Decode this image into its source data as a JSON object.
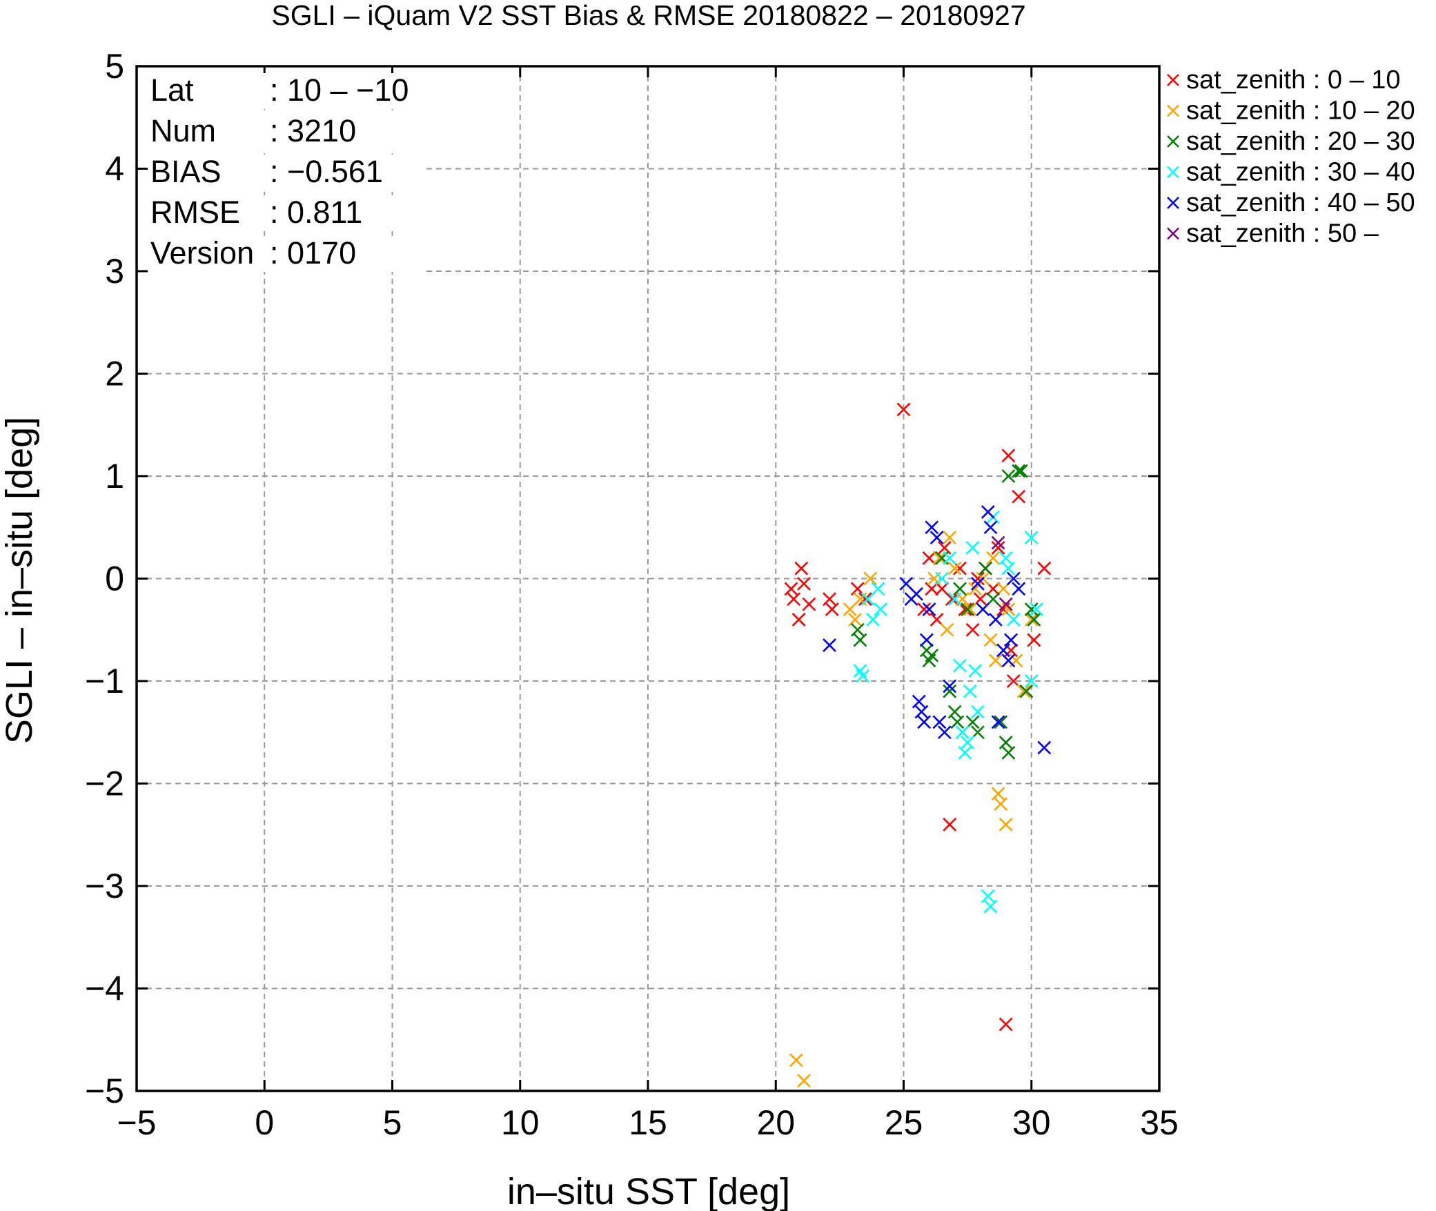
{
  "chart_data": {
    "type": "scatter",
    "title": "SGLI – iQuam V2 SST Bias & RMSE 20180822 – 20180927",
    "xlabel": "in–situ SST [deg]",
    "ylabel": "SGLI – in–situ [deg]",
    "xlim": [
      -5,
      35
    ],
    "ylim": [
      -5,
      5
    ],
    "xticks": [
      -5,
      0,
      5,
      10,
      15,
      20,
      25,
      30,
      35
    ],
    "yticks": [
      -5,
      -4,
      -3,
      -2,
      -1,
      0,
      1,
      2,
      3,
      4,
      5
    ],
    "xtick_labels": [
      "−5",
      "0",
      "5",
      "10",
      "15",
      "20",
      "25",
      "30",
      "35"
    ],
    "ytick_labels": [
      "−5",
      "−4",
      "−3",
      "−2",
      "−1",
      "0",
      "1",
      "2",
      "3",
      "4",
      "5"
    ],
    "grid": true,
    "marker": "x",
    "legend_position": "outside-top-right",
    "stats": [
      {
        "key": "Lat",
        "value": ": 10 – −10"
      },
      {
        "key": "Num",
        "value": ": 3210"
      },
      {
        "key": "BIAS",
        "value": ": −0.561"
      },
      {
        "key": "RMSE",
        "value": ": 0.811"
      },
      {
        "key": "Version",
        "value": ": 0170"
      }
    ],
    "series": [
      {
        "name": "sat_zenith :  0 – 10",
        "color": "#ff0000",
        "points": [
          [
            20.6,
            -0.1
          ],
          [
            20.7,
            -0.2
          ],
          [
            20.9,
            -0.4
          ],
          [
            21.0,
            0.1
          ],
          [
            21.1,
            -0.05
          ],
          [
            21.3,
            -0.25
          ],
          [
            22.1,
            -0.2
          ],
          [
            22.2,
            -0.3
          ],
          [
            23.2,
            -0.1
          ],
          [
            23.5,
            -0.2
          ],
          [
            25.0,
            1.65
          ],
          [
            25.8,
            -0.3
          ],
          [
            26.0,
            0.2
          ],
          [
            26.1,
            -0.1
          ],
          [
            26.3,
            -0.4
          ],
          [
            26.6,
            0.3
          ],
          [
            26.9,
            -0.2
          ],
          [
            27.2,
            0.1
          ],
          [
            27.4,
            -0.3
          ],
          [
            27.7,
            -0.5
          ],
          [
            27.9,
            0.0
          ],
          [
            28.2,
            0.1
          ],
          [
            28.5,
            -0.1
          ],
          [
            28.7,
            0.3
          ],
          [
            28.9,
            -0.3
          ],
          [
            29.1,
            1.2
          ],
          [
            29.3,
            -1.0
          ],
          [
            29.5,
            0.8
          ],
          [
            30.1,
            -0.6
          ],
          [
            30.5,
            0.1
          ],
          [
            26.8,
            -2.4
          ],
          [
            29.0,
            -4.35
          ],
          [
            29.2,
            -0.7
          ],
          [
            28.0,
            -0.2
          ],
          [
            26.5,
            -0.1
          ]
        ]
      },
      {
        "name": "sat_zenith : 10 – 20",
        "color": "#ffa500",
        "points": [
          [
            20.8,
            -4.7
          ],
          [
            21.1,
            -4.9
          ],
          [
            22.9,
            -0.3
          ],
          [
            23.1,
            -0.4
          ],
          [
            23.3,
            -0.2
          ],
          [
            23.7,
            0.0
          ],
          [
            26.2,
            0.0
          ],
          [
            26.4,
            0.2
          ],
          [
            26.7,
            -0.5
          ],
          [
            26.8,
            0.4
          ],
          [
            27.0,
            0.1
          ],
          [
            27.3,
            -0.2
          ],
          [
            27.6,
            -0.3
          ],
          [
            28.1,
            0.0
          ],
          [
            28.4,
            -0.6
          ],
          [
            28.6,
            -0.8
          ],
          [
            28.7,
            -2.1
          ],
          [
            28.8,
            -2.2
          ],
          [
            29.0,
            -2.4
          ],
          [
            28.9,
            -0.1
          ],
          [
            29.1,
            -0.3
          ],
          [
            29.4,
            -0.8
          ],
          [
            29.7,
            -1.1
          ],
          [
            30.0,
            -0.4
          ],
          [
            28.5,
            0.2
          ],
          [
            27.8,
            -0.1
          ]
        ]
      },
      {
        "name": "sat_zenith : 20 – 30",
        "color": "#008000",
        "points": [
          [
            23.2,
            -0.5
          ],
          [
            23.3,
            -0.6
          ],
          [
            25.9,
            -0.7
          ],
          [
            26.0,
            -0.8
          ],
          [
            26.1,
            -0.75
          ],
          [
            26.5,
            0.2
          ],
          [
            26.8,
            -1.1
          ],
          [
            27.0,
            -1.3
          ],
          [
            27.1,
            -1.4
          ],
          [
            27.3,
            -1.5
          ],
          [
            27.5,
            -0.3
          ],
          [
            27.7,
            -1.4
          ],
          [
            27.9,
            -1.5
          ],
          [
            28.2,
            0.1
          ],
          [
            28.5,
            -0.2
          ],
          [
            28.8,
            -1.4
          ],
          [
            29.0,
            -1.6
          ],
          [
            29.1,
            -1.7
          ],
          [
            29.1,
            1.0
          ],
          [
            29.5,
            1.05
          ],
          [
            29.6,
            1.05
          ],
          [
            29.8,
            -1.1
          ],
          [
            30.0,
            -0.3
          ],
          [
            30.1,
            -0.4
          ],
          [
            27.2,
            -0.1
          ]
        ]
      },
      {
        "name": "sat_zenith : 30 – 40",
        "color": "#00ffff",
        "points": [
          [
            23.3,
            -0.9
          ],
          [
            23.4,
            -0.95
          ],
          [
            23.6,
            -0.2
          ],
          [
            23.8,
            -0.4
          ],
          [
            24.0,
            -0.1
          ],
          [
            24.1,
            -0.3
          ],
          [
            26.5,
            0.0
          ],
          [
            26.8,
            0.2
          ],
          [
            27.0,
            -0.2
          ],
          [
            27.2,
            -0.85
          ],
          [
            27.3,
            -1.5
          ],
          [
            27.4,
            -1.7
          ],
          [
            27.5,
            -1.6
          ],
          [
            27.7,
            0.3
          ],
          [
            27.8,
            -0.9
          ],
          [
            27.9,
            -1.3
          ],
          [
            28.3,
            -3.1
          ],
          [
            28.4,
            -3.2
          ],
          [
            28.5,
            0.6
          ],
          [
            29.0,
            0.2
          ],
          [
            29.1,
            0.1
          ],
          [
            29.3,
            -0.4
          ],
          [
            30.0,
            0.4
          ],
          [
            30.0,
            -1.0
          ],
          [
            30.2,
            -0.3
          ],
          [
            27.6,
            -1.1
          ]
        ]
      },
      {
        "name": "sat_zenith : 40 – 50",
        "color": "#0000ff",
        "points": [
          [
            22.1,
            -0.65
          ],
          [
            25.1,
            -0.05
          ],
          [
            25.3,
            -0.2
          ],
          [
            25.5,
            -0.15
          ],
          [
            25.6,
            -1.2
          ],
          [
            25.7,
            -1.3
          ],
          [
            25.8,
            -1.4
          ],
          [
            25.9,
            -0.6
          ],
          [
            26.0,
            -0.3
          ],
          [
            26.1,
            0.5
          ],
          [
            26.3,
            0.4
          ],
          [
            26.4,
            -1.4
          ],
          [
            26.6,
            -1.5
          ],
          [
            26.8,
            -1.05
          ],
          [
            28.3,
            0.65
          ],
          [
            28.4,
            0.5
          ],
          [
            28.6,
            -0.4
          ],
          [
            28.7,
            -1.4
          ],
          [
            28.9,
            -0.7
          ],
          [
            29.1,
            -0.8
          ],
          [
            29.2,
            -0.6
          ],
          [
            29.3,
            0.0
          ],
          [
            29.5,
            -0.1
          ],
          [
            30.5,
            -1.65
          ],
          [
            28.1,
            -0.3
          ],
          [
            27.9,
            -0.05
          ]
        ]
      },
      {
        "name": "sat_zenith : 50 –",
        "color": "#7f007f",
        "points": [
          [
            28.7,
            0.35
          ],
          [
            29.0,
            -0.25
          ]
        ]
      }
    ]
  }
}
